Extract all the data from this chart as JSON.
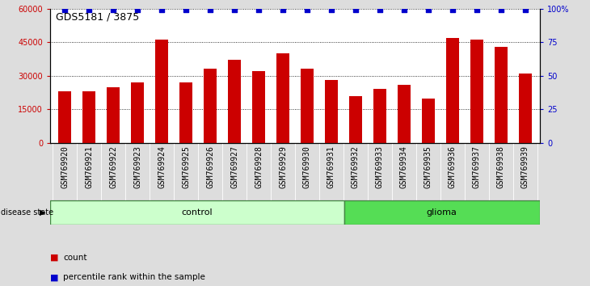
{
  "title": "GDS5181 / 3875",
  "samples": [
    "GSM769920",
    "GSM769921",
    "GSM769922",
    "GSM769923",
    "GSM769924",
    "GSM769925",
    "GSM769926",
    "GSM769927",
    "GSM769928",
    "GSM769929",
    "GSM769930",
    "GSM769931",
    "GSM769932",
    "GSM769933",
    "GSM769934",
    "GSM769935",
    "GSM769936",
    "GSM769937",
    "GSM769938",
    "GSM769939"
  ],
  "counts": [
    23000,
    23000,
    25000,
    27000,
    46000,
    27000,
    33000,
    37000,
    32000,
    40000,
    33000,
    28000,
    21000,
    24000,
    26000,
    20000,
    47000,
    46000,
    43000,
    31000
  ],
  "percentile_ranks": [
    99,
    99,
    99,
    99,
    99,
    99,
    99,
    99,
    99,
    99,
    99,
    99,
    99,
    99,
    99,
    99,
    99,
    99,
    99,
    99
  ],
  "bar_color": "#cc0000",
  "dot_color": "#0000cc",
  "ylim_left": [
    0,
    60000
  ],
  "ylim_right": [
    0,
    100
  ],
  "yticks_left": [
    0,
    15000,
    30000,
    45000,
    60000
  ],
  "yticks_right": [
    0,
    25,
    50,
    75,
    100
  ],
  "ytick_labels_left": [
    "0",
    "15000",
    "30000",
    "45000",
    "60000"
  ],
  "ytick_labels_right": [
    "0",
    "25",
    "50",
    "75",
    "100%"
  ],
  "control_count": 12,
  "glioma_count": 8,
  "group_labels": [
    "control",
    "glioma"
  ],
  "group_color_control": "#ccffcc",
  "group_color_glioma": "#55dd55",
  "group_border_color": "#448844",
  "disease_state_label": "disease state",
  "legend_count_label": "count",
  "legend_pct_label": "percentile rank within the sample",
  "background_color": "#dddddd",
  "plot_bg_color": "#ffffff",
  "sample_bg_color": "#cccccc",
  "grid_color": "#000000",
  "title_fontsize": 9,
  "axis_fontsize": 7,
  "bar_width": 0.55
}
